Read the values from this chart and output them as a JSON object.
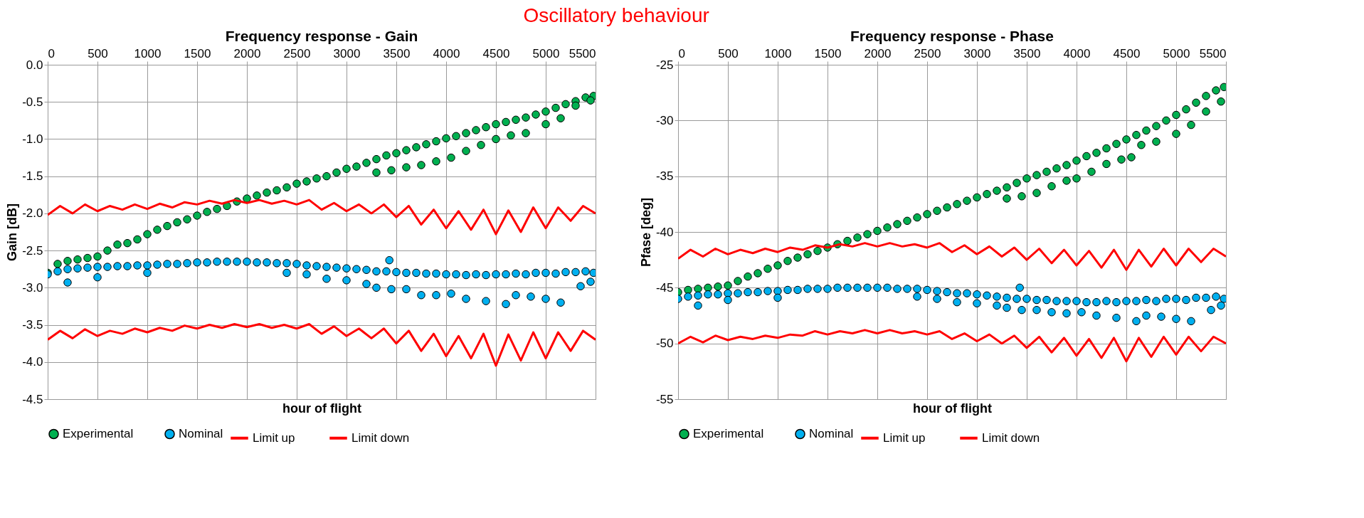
{
  "chart_data": [
    {
      "type": "scatter",
      "title": "Frequency response - Gain",
      "xlabel": "hour of flight",
      "ylabel": "Gain [dB]",
      "annotations": [
        "Oscillatory behaviour"
      ],
      "xlim": [
        0,
        5500
      ],
      "xticks": [
        0,
        500,
        1000,
        1500,
        2000,
        2500,
        3000,
        3500,
        4000,
        4500,
        5000,
        5500
      ],
      "ylim": [
        -4.5,
        0
      ],
      "yticks": [
        {
          "value": -4.5,
          "label": "-4.5"
        },
        {
          "value": -4,
          "label": "-4.0"
        },
        {
          "value": -3.5,
          "label": "-3.5"
        },
        {
          "value": -3,
          "label": "-3.0"
        },
        {
          "value": -2.5,
          "label": "-2.5"
        },
        {
          "value": -2,
          "label": "-2.0"
        },
        {
          "value": -1.5,
          "label": "-1.5"
        },
        {
          "value": -1,
          "label": "-1.0"
        },
        {
          "value": -0.5,
          "label": "-0.5"
        },
        {
          "value": 0,
          "label": "0.0"
        }
      ],
      "grid": true,
      "legend": "bottom",
      "series": [
        {
          "name": "Experimental",
          "type": "scatter",
          "marker": "circle",
          "color": "#00b050",
          "x": [
            0,
            100,
            200,
            300,
            400,
            500,
            600,
            700,
            800,
            900,
            1000,
            1100,
            1200,
            1300,
            1400,
            1500,
            1600,
            1700,
            1800,
            1900,
            2000,
            2100,
            2200,
            2300,
            2400,
            2500,
            2600,
            2700,
            2800,
            2900,
            3000,
            3100,
            3200,
            3300,
            3400,
            3500,
            3600,
            3700,
            3800,
            3900,
            4000,
            4100,
            4200,
            4300,
            4400,
            4500,
            4600,
            4700,
            4800,
            4900,
            5000,
            5100,
            5200,
            5300,
            5400,
            5480,
            3300,
            3450,
            3600,
            3750,
            3900,
            4050,
            4200,
            4350,
            4500,
            4650,
            4800,
            5000,
            5150,
            5300,
            5450
          ],
          "values": [
            -2.8,
            -2.68,
            -2.64,
            -2.62,
            -2.6,
            -2.58,
            -2.5,
            -2.42,
            -2.4,
            -2.35,
            -2.28,
            -2.22,
            -2.17,
            -2.12,
            -2.08,
            -2.03,
            -1.98,
            -1.94,
            -1.9,
            -1.84,
            -1.8,
            -1.76,
            -1.72,
            -1.69,
            -1.65,
            -1.6,
            -1.57,
            -1.53,
            -1.5,
            -1.45,
            -1.4,
            -1.37,
            -1.32,
            -1.27,
            -1.22,
            -1.19,
            -1.15,
            -1.11,
            -1.07,
            -1.03,
            -0.99,
            -0.96,
            -0.92,
            -0.88,
            -0.84,
            -0.8,
            -0.77,
            -0.74,
            -0.71,
            -0.67,
            -0.63,
            -0.58,
            -0.53,
            -0.49,
            -0.44,
            -0.42,
            -1.45,
            -1.42,
            -1.38,
            -1.35,
            -1.3,
            -1.25,
            -1.16,
            -1.08,
            -1.0,
            -0.95,
            -0.92,
            -0.8,
            -0.72,
            -0.55,
            -0.48
          ]
        },
        {
          "name": "Nominal",
          "type": "scatter",
          "marker": "circle",
          "color": "#00b0f0",
          "x": [
            0,
            100,
            200,
            300,
            400,
            500,
            600,
            700,
            800,
            900,
            1000,
            1100,
            1200,
            1300,
            1400,
            1500,
            1600,
            1700,
            1800,
            1900,
            2000,
            2100,
            2200,
            2300,
            2400,
            2500,
            2600,
            2700,
            2800,
            2900,
            3000,
            3100,
            3200,
            3300,
            3400,
            3500,
            3600,
            3700,
            3800,
            3900,
            4000,
            4100,
            4200,
            4300,
            4400,
            4500,
            4600,
            4700,
            4800,
            4900,
            5000,
            5100,
            5200,
            5300,
            5400,
            5480,
            200,
            500,
            1000,
            2400,
            2600,
            2800,
            3000,
            3200,
            3300,
            3450,
            3600,
            3750,
            3900,
            4050,
            4200,
            4400,
            4600,
            4700,
            4850,
            5000,
            5150,
            5350,
            5450,
            3430
          ],
          "values": [
            -2.82,
            -2.78,
            -2.75,
            -2.74,
            -2.73,
            -2.72,
            -2.72,
            -2.71,
            -2.71,
            -2.7,
            -2.7,
            -2.69,
            -2.68,
            -2.68,
            -2.67,
            -2.66,
            -2.66,
            -2.65,
            -2.65,
            -2.65,
            -2.65,
            -2.66,
            -2.66,
            -2.67,
            -2.67,
            -2.68,
            -2.7,
            -2.71,
            -2.72,
            -2.73,
            -2.74,
            -2.75,
            -2.76,
            -2.78,
            -2.78,
            -2.79,
            -2.8,
            -2.8,
            -2.81,
            -2.81,
            -2.82,
            -2.82,
            -2.83,
            -2.82,
            -2.83,
            -2.82,
            -2.82,
            -2.81,
            -2.82,
            -2.8,
            -2.8,
            -2.81,
            -2.79,
            -2.79,
            -2.78,
            -2.8,
            -2.93,
            -2.86,
            -2.8,
            -2.8,
            -2.82,
            -2.88,
            -2.9,
            -2.95,
            -3.0,
            -3.02,
            -3.02,
            -3.1,
            -3.1,
            -3.08,
            -3.15,
            -3.18,
            -3.22,
            -3.1,
            -3.12,
            -3.15,
            -3.2,
            -2.98,
            -2.92,
            -2.63
          ]
        },
        {
          "name": "Limit up",
          "type": "line",
          "color": "#ff0000",
          "x": [
            0,
            125,
            250,
            375,
            500,
            625,
            750,
            875,
            1000,
            1125,
            1250,
            1375,
            1500,
            1625,
            1750,
            1875,
            2000,
            2125,
            2250,
            2375,
            2500,
            2625,
            2750,
            2875,
            3000,
            3125,
            3250,
            3375,
            3500,
            3625,
            3750,
            3875,
            4000,
            4125,
            4250,
            4375,
            4500,
            4625,
            4750,
            4875,
            5000,
            5125,
            5250,
            5375,
            5500
          ],
          "values": [
            -2.02,
            -1.9,
            -2.0,
            -1.88,
            -1.97,
            -1.9,
            -1.95,
            -1.88,
            -1.94,
            -1.87,
            -1.92,
            -1.85,
            -1.88,
            -1.83,
            -1.87,
            -1.82,
            -1.86,
            -1.82,
            -1.87,
            -1.83,
            -1.88,
            -1.82,
            -1.95,
            -1.86,
            -1.97,
            -1.88,
            -2.0,
            -1.88,
            -2.05,
            -1.9,
            -2.15,
            -1.95,
            -2.2,
            -1.97,
            -2.22,
            -1.95,
            -2.28,
            -1.96,
            -2.25,
            -1.92,
            -2.2,
            -1.92,
            -2.1,
            -1.9,
            -2.0
          ]
        },
        {
          "name": "Limit down",
          "type": "line",
          "color": "#ff0000",
          "x": [
            0,
            125,
            250,
            375,
            500,
            625,
            750,
            875,
            1000,
            1125,
            1250,
            1375,
            1500,
            1625,
            1750,
            1875,
            2000,
            2125,
            2250,
            2375,
            2500,
            2625,
            2750,
            2875,
            3000,
            3125,
            3250,
            3375,
            3500,
            3625,
            3750,
            3875,
            4000,
            4125,
            4250,
            4375,
            4500,
            4625,
            4750,
            4875,
            5000,
            5125,
            5250,
            5375,
            5500
          ],
          "values": [
            -3.7,
            -3.58,
            -3.68,
            -3.56,
            -3.65,
            -3.58,
            -3.62,
            -3.55,
            -3.6,
            -3.54,
            -3.58,
            -3.51,
            -3.55,
            -3.5,
            -3.54,
            -3.49,
            -3.53,
            -3.49,
            -3.54,
            -3.5,
            -3.55,
            -3.49,
            -3.62,
            -3.52,
            -3.65,
            -3.55,
            -3.68,
            -3.55,
            -3.75,
            -3.58,
            -3.85,
            -3.62,
            -3.92,
            -3.65,
            -3.95,
            -3.62,
            -4.05,
            -3.63,
            -3.98,
            -3.6,
            -3.95,
            -3.6,
            -3.85,
            -3.58,
            -3.7
          ]
        }
      ]
    },
    {
      "type": "scatter",
      "title": "Frequency response - Phase",
      "xlabel": "hour of flight",
      "ylabel": "Pfase [deg]",
      "xlim": [
        0,
        5500
      ],
      "xticks": [
        0,
        500,
        1000,
        1500,
        2000,
        2500,
        3000,
        3500,
        4000,
        4500,
        5000,
        5500
      ],
      "ylim": [
        -55,
        -25
      ],
      "yticks": [
        -55,
        -50,
        -45,
        -40,
        -35,
        -30,
        -25
      ],
      "grid": true,
      "legend": "bottom",
      "series": [
        {
          "name": "Experimental",
          "type": "scatter",
          "marker": "circle",
          "color": "#00b050",
          "x": [
            0,
            100,
            200,
            300,
            400,
            500,
            600,
            700,
            800,
            900,
            1000,
            1100,
            1200,
            1300,
            1400,
            1500,
            1600,
            1700,
            1800,
            1900,
            2000,
            2100,
            2200,
            2300,
            2400,
            2500,
            2600,
            2700,
            2800,
            2900,
            3000,
            3100,
            3200,
            3300,
            3400,
            3500,
            3600,
            3700,
            3800,
            3900,
            4000,
            4100,
            4200,
            4300,
            4400,
            4500,
            4600,
            4700,
            4800,
            4900,
            5000,
            5100,
            5200,
            5300,
            5400,
            5480,
            3300,
            3450,
            3600,
            3750,
            3900,
            4000,
            4150,
            4300,
            4450,
            4550,
            4650,
            4800,
            5000,
            5150,
            5300,
            5450
          ],
          "values": [
            -45.4,
            -45.2,
            -45.1,
            -45.0,
            -44.9,
            -44.8,
            -44.4,
            -44.0,
            -43.7,
            -43.3,
            -43.0,
            -42.6,
            -42.3,
            -42.0,
            -41.7,
            -41.4,
            -41.1,
            -40.8,
            -40.5,
            -40.2,
            -39.9,
            -39.6,
            -39.3,
            -39.0,
            -38.7,
            -38.4,
            -38.1,
            -37.8,
            -37.5,
            -37.2,
            -36.9,
            -36.6,
            -36.3,
            -36.0,
            -35.6,
            -35.2,
            -34.9,
            -34.6,
            -34.3,
            -34.0,
            -33.6,
            -33.2,
            -32.9,
            -32.5,
            -32.1,
            -31.7,
            -31.3,
            -30.9,
            -30.5,
            -30.0,
            -29.5,
            -29.0,
            -28.4,
            -27.8,
            -27.3,
            -27.0,
            -37.0,
            -36.8,
            -36.5,
            -35.9,
            -35.4,
            -35.2,
            -34.6,
            -33.9,
            -33.5,
            -33.3,
            -32.2,
            -31.9,
            -31.2,
            -30.4,
            -29.2,
            -28.3
          ]
        },
        {
          "name": "Nominal",
          "type": "scatter",
          "marker": "circle",
          "color": "#00b0f0",
          "x": [
            0,
            100,
            200,
            300,
            400,
            500,
            600,
            700,
            800,
            900,
            1000,
            1100,
            1200,
            1300,
            1400,
            1500,
            1600,
            1700,
            1800,
            1900,
            2000,
            2100,
            2200,
            2300,
            2400,
            2500,
            2600,
            2700,
            2800,
            2900,
            3000,
            3100,
            3200,
            3300,
            3400,
            3500,
            3600,
            3700,
            3800,
            3900,
            4000,
            4100,
            4200,
            4300,
            4400,
            4500,
            4600,
            4700,
            4800,
            4900,
            5000,
            5100,
            5200,
            5300,
            5400,
            5480,
            200,
            500,
            1000,
            2400,
            2600,
            2800,
            3000,
            3200,
            3300,
            3450,
            3600,
            3750,
            3900,
            4050,
            4200,
            4400,
            4600,
            4700,
            4850,
            5000,
            5150,
            5350,
            5450,
            3430
          ],
          "values": [
            -46.0,
            -45.8,
            -45.7,
            -45.6,
            -45.6,
            -45.5,
            -45.5,
            -45.4,
            -45.4,
            -45.3,
            -45.3,
            -45.2,
            -45.2,
            -45.1,
            -45.1,
            -45.1,
            -45.0,
            -45.0,
            -45.0,
            -45.0,
            -45.0,
            -45.0,
            -45.1,
            -45.1,
            -45.1,
            -45.2,
            -45.3,
            -45.4,
            -45.5,
            -45.5,
            -45.6,
            -45.7,
            -45.8,
            -45.9,
            -46.0,
            -46.0,
            -46.1,
            -46.1,
            -46.2,
            -46.2,
            -46.2,
            -46.3,
            -46.3,
            -46.2,
            -46.3,
            -46.2,
            -46.2,
            -46.1,
            -46.2,
            -46.0,
            -46.0,
            -46.1,
            -45.9,
            -45.9,
            -45.8,
            -46.0,
            -46.6,
            -46.1,
            -45.9,
            -45.8,
            -46.0,
            -46.3,
            -46.4,
            -46.6,
            -46.8,
            -47.0,
            -47.0,
            -47.2,
            -47.3,
            -47.2,
            -47.5,
            -47.7,
            -48.0,
            -47.5,
            -47.6,
            -47.8,
            -48.0,
            -47.0,
            -46.6,
            -45.0
          ]
        },
        {
          "name": "Limit up",
          "type": "line",
          "color": "#ff0000",
          "x": [
            0,
            125,
            250,
            375,
            500,
            625,
            750,
            875,
            1000,
            1125,
            1250,
            1375,
            1500,
            1625,
            1750,
            1875,
            2000,
            2125,
            2250,
            2375,
            2500,
            2625,
            2750,
            2875,
            3000,
            3125,
            3250,
            3375,
            3500,
            3625,
            3750,
            3875,
            4000,
            4125,
            4250,
            4375,
            4500,
            4625,
            4750,
            4875,
            5000,
            5125,
            5250,
            5375,
            5500
          ],
          "values": [
            -42.4,
            -41.6,
            -42.2,
            -41.5,
            -42.0,
            -41.6,
            -41.9,
            -41.5,
            -41.8,
            -41.4,
            -41.6,
            -41.2,
            -41.4,
            -41.1,
            -41.3,
            -41.0,
            -41.3,
            -41.0,
            -41.3,
            -41.1,
            -41.4,
            -41.0,
            -41.8,
            -41.2,
            -42.0,
            -41.3,
            -42.2,
            -41.4,
            -42.5,
            -41.5,
            -42.8,
            -41.6,
            -43.0,
            -41.7,
            -43.2,
            -41.6,
            -43.4,
            -41.6,
            -43.1,
            -41.5,
            -43.0,
            -41.5,
            -42.7,
            -41.5,
            -42.2
          ]
        },
        {
          "name": "Limit down",
          "type": "line",
          "color": "#ff0000",
          "x": [
            0,
            125,
            250,
            375,
            500,
            625,
            750,
            875,
            1000,
            1125,
            1250,
            1375,
            1500,
            1625,
            1750,
            1875,
            2000,
            2125,
            2250,
            2375,
            2500,
            2625,
            2750,
            2875,
            3000,
            3125,
            3250,
            3375,
            3500,
            3625,
            3750,
            3875,
            4000,
            4125,
            4250,
            4375,
            4500,
            4625,
            4750,
            4875,
            5000,
            5125,
            5250,
            5375,
            5500
          ],
          "values": [
            -50.0,
            -49.4,
            -49.9,
            -49.3,
            -49.7,
            -49.4,
            -49.6,
            -49.3,
            -49.5,
            -49.2,
            -49.3,
            -48.9,
            -49.2,
            -48.9,
            -49.1,
            -48.8,
            -49.1,
            -48.8,
            -49.1,
            -48.9,
            -49.2,
            -48.9,
            -49.6,
            -49.1,
            -49.8,
            -49.2,
            -50.0,
            -49.3,
            -50.4,
            -49.4,
            -50.8,
            -49.5,
            -51.1,
            -49.6,
            -51.3,
            -49.5,
            -51.6,
            -49.5,
            -51.2,
            -49.4,
            -51.0,
            -49.4,
            -50.7,
            -49.4,
            -50.0
          ]
        }
      ]
    }
  ]
}
